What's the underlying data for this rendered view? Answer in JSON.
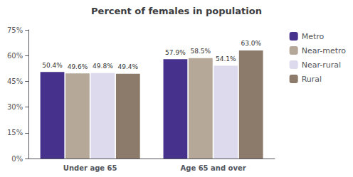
{
  "chart_data": {
    "type": "bar",
    "title": "Percent of females in population",
    "categories": [
      "Under age 65",
      "Age 65 and over"
    ],
    "series": [
      {
        "name": "Metro",
        "color": "#46328c",
        "values": [
          50.4,
          57.9
        ],
        "value_labels": [
          "50.4%",
          "57.9%"
        ]
      },
      {
        "name": "Near-metro",
        "color": "#b5a898",
        "values": [
          49.6,
          58.5
        ],
        "value_labels": [
          "49.6%",
          "58.5%"
        ]
      },
      {
        "name": "Near-rural",
        "color": "#dcdaec",
        "values": [
          49.8,
          54.1
        ],
        "value_labels": [
          "49.8%",
          "54.1%"
        ]
      },
      {
        "name": "Rural",
        "color": "#8c7b6b",
        "values": [
          49.4,
          63.0
        ],
        "value_labels": [
          "49.4%",
          "63.0%"
        ]
      }
    ],
    "ylim": [
      0,
      75
    ],
    "yticks": [
      {
        "value": 0,
        "label": "0%"
      },
      {
        "value": 15,
        "label": "15%"
      },
      {
        "value": 30,
        "label": "30%"
      },
      {
        "value": 45,
        "label": "45%"
      },
      {
        "value": 60,
        "label": "60%"
      },
      {
        "value": 75,
        "label": "75%"
      }
    ],
    "grid": false,
    "legend": "right",
    "data_labels": true
  }
}
